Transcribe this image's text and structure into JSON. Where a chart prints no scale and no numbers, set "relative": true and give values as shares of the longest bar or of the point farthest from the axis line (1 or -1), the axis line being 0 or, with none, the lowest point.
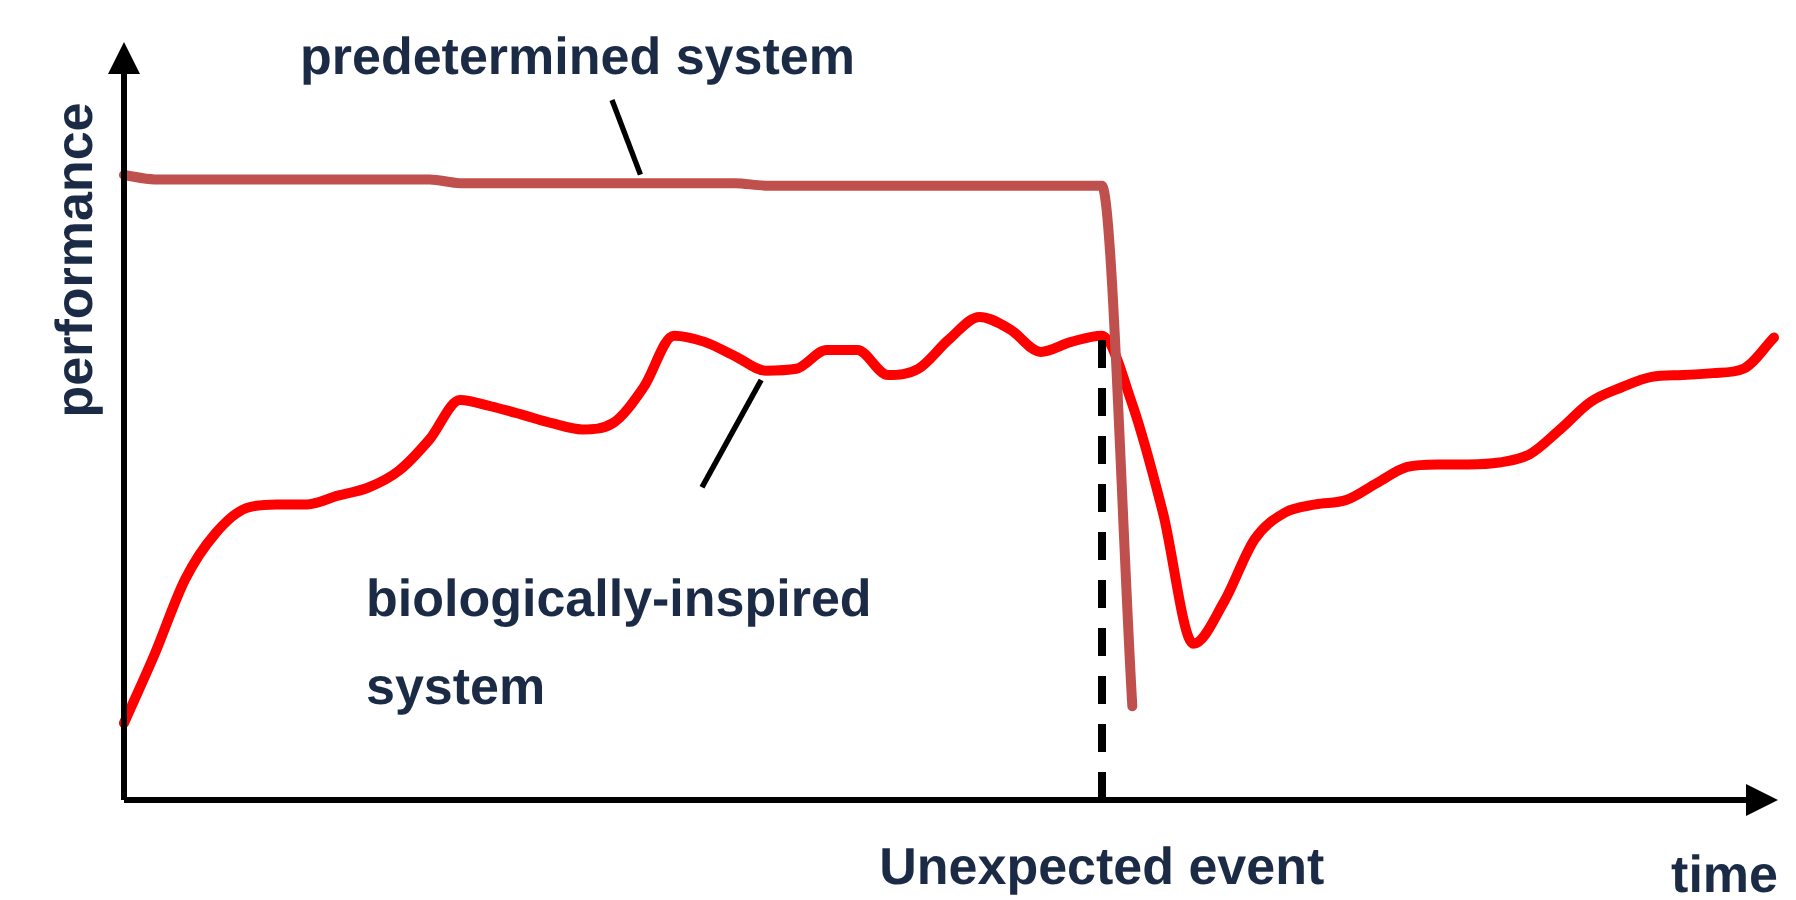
{
  "chart_data": {
    "type": "line",
    "relative": true,
    "xlabel": "time",
    "ylabel": "performance",
    "marker": "none",
    "grid": false,
    "line_style": "solid",
    "categories": [
      null,
      null,
      null,
      null,
      null,
      null,
      null,
      null,
      null,
      null,
      null,
      null,
      null,
      null,
      null,
      null,
      null,
      null,
      null,
      null,
      null,
      null,
      null,
      null,
      null,
      null,
      null,
      null,
      null,
      null,
      null,
      null,
      null,
      null,
      null,
      null,
      null,
      null,
      null,
      null,
      null,
      null,
      null,
      null,
      null,
      null,
      null,
      null,
      null,
      null,
      null,
      null,
      null,
      null,
      null
    ],
    "series": [
      {
        "name": "predetermined system",
        "color": "#c0504d",
        "values": [
          1,
          0.993,
          0.993,
          0.993,
          0.993,
          0.993,
          0.993,
          0.993,
          0.993,
          0.993,
          0.993,
          0.987,
          0.987,
          0.987,
          0.987,
          0.987,
          0.987,
          0.987,
          0.987,
          0.987,
          0.987,
          0.983,
          0.983,
          0.983,
          0.983,
          0.983,
          0.983,
          0.983,
          0.983,
          0.983,
          0.983,
          0.983,
          0.983,
          0.15,
          null,
          null,
          null,
          null,
          null,
          null,
          null,
          null,
          null,
          null,
          null,
          null,
          null,
          null,
          null,
          null,
          null,
          null,
          null,
          null,
          null
        ]
      },
      {
        "name": "biologically-inspired system",
        "color": "#ff0000",
        "values": [
          0.123,
          0.233,
          0.353,
          0.427,
          0.467,
          0.473,
          0.473,
          0.487,
          0.5,
          0.527,
          0.577,
          0.64,
          0.63,
          0.617,
          0.603,
          0.593,
          0.603,
          0.66,
          0.743,
          0.733,
          0.71,
          0.687,
          0.69,
          0.72,
          0.72,
          0.68,
          0.69,
          0.737,
          0.773,
          0.753,
          0.717,
          0.733,
          0.743,
          0.633,
          0.46,
          0.25,
          0.317,
          0.417,
          0.46,
          0.473,
          0.48,
          0.507,
          0.533,
          0.537,
          0.537,
          0.54,
          0.553,
          0.593,
          0.637,
          0.66,
          0.677,
          0.68,
          0.683,
          0.69,
          0.74
        ]
      }
    ],
    "annotations": [
      "Unexpected event"
    ]
  }
}
